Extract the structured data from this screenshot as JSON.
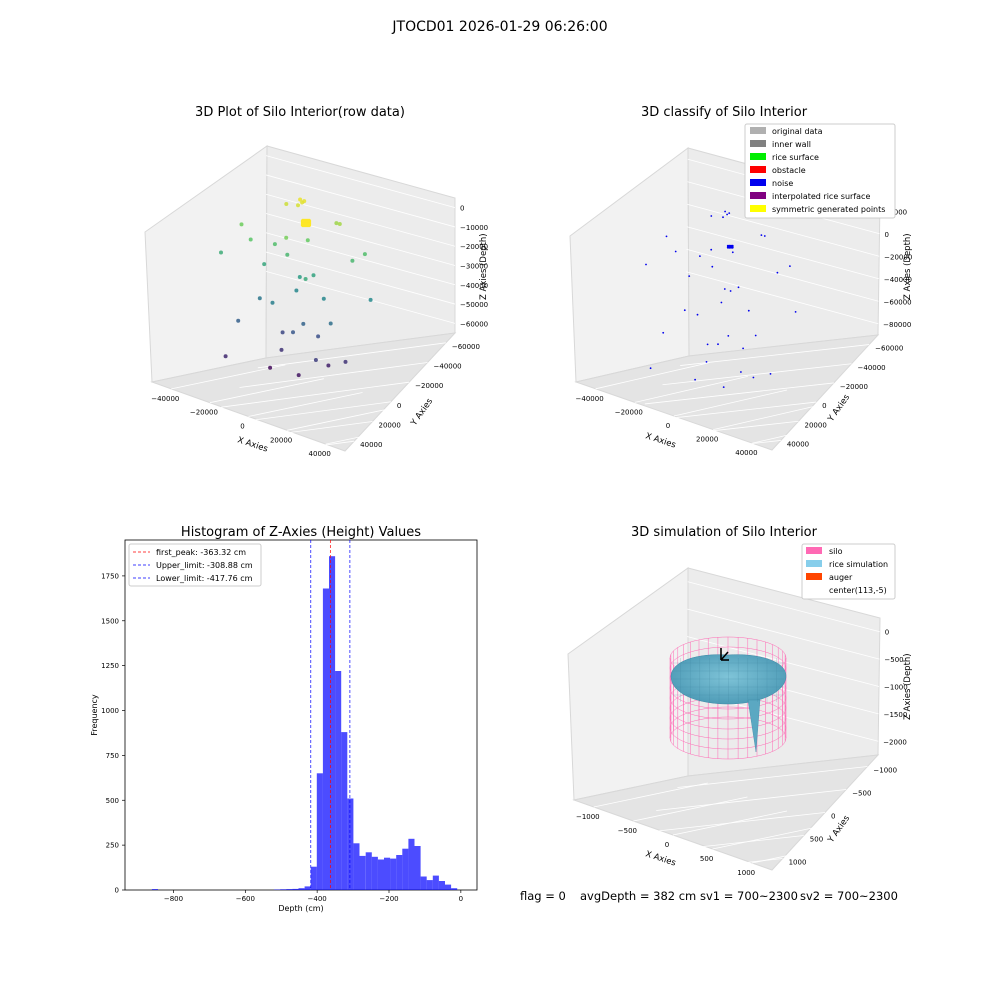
{
  "suptitle": "JTOCD01 2026-01-29 06:26:00",
  "footer": {
    "flag": "flag = 0",
    "avg_depth": "avgDepth = 382 cm",
    "sv1": "sv1 = 700~2300",
    "sv2": "sv2 = 700~2300"
  },
  "chart_data": [
    {
      "type": "scatter",
      "id": "raw",
      "title": "3D Plot of Silo Interior(row data)",
      "xlabel": "X Axies",
      "ylabel": "Y Axies",
      "zlabel": "Z Axies (Depth)",
      "xticks": [
        "−40000",
        "−20000",
        "0",
        "20000",
        "40000"
      ],
      "yticks": [
        "40000",
        "20000",
        "0",
        "−20000",
        "−40000",
        "−60000"
      ],
      "zticks": [
        "0",
        "−10000",
        "−20000",
        "−30000",
        "−40000",
        "−50000",
        "−60000"
      ],
      "colormap": "viridis",
      "points": [
        {
          "x": 8000,
          "y": 0,
          "z": -2000
        },
        {
          "x": 9000,
          "y": 1000,
          "z": -3000
        },
        {
          "x": 7000,
          "y": -1000,
          "z": -4000
        },
        {
          "x": 10000,
          "y": 2000,
          "z": -2500
        },
        {
          "x": -2000,
          "y": 5000,
          "z": -5000
        },
        {
          "x": 25000,
          "y": 20000,
          "z": -10000
        },
        {
          "x": -20000,
          "y": -10000,
          "z": -18000
        },
        {
          "x": 30000,
          "y": 10000,
          "z": -9000
        },
        {
          "x": -30000,
          "y": 5000,
          "z": -15000
        },
        {
          "x": 5000,
          "y": -20000,
          "z": -14000
        },
        {
          "x": 12000,
          "y": 3000,
          "z": -16000
        },
        {
          "x": -10000,
          "y": 8000,
          "z": -20000
        },
        {
          "x": 40000,
          "y": 30000,
          "z": -20000
        },
        {
          "x": 35000,
          "y": 20000,
          "z": -22000
        },
        {
          "x": 0,
          "y": 0,
          "z": -22000
        },
        {
          "x": -40000,
          "y": -5000,
          "z": -25000
        },
        {
          "x": 20000,
          "y": -30000,
          "z": -26000
        },
        {
          "x": 15000,
          "y": 5000,
          "z": -28000
        },
        {
          "x": -15000,
          "y": 2000,
          "z": -27000
        },
        {
          "x": 5000,
          "y": 10000,
          "z": -30000
        },
        {
          "x": 45000,
          "y": 25000,
          "z": -35000
        },
        {
          "x": 20000,
          "y": 10000,
          "z": -36000
        },
        {
          "x": -5000,
          "y": -15000,
          "z": -38000
        },
        {
          "x": 0,
          "y": 20000,
          "z": -36000
        },
        {
          "x": -20000,
          "y": 10000,
          "z": -40000
        },
        {
          "x": 30000,
          "y": -10000,
          "z": -42000
        },
        {
          "x": 10000,
          "y": 0,
          "z": -45000
        },
        {
          "x": -25000,
          "y": -20000,
          "z": -46000
        },
        {
          "x": 5000,
          "y": -5000,
          "z": -48000
        },
        {
          "x": 15000,
          "y": 15000,
          "z": -50000
        },
        {
          "x": -10000,
          "y": 25000,
          "z": -52000
        },
        {
          "x": 25000,
          "y": -25000,
          "z": -54000
        },
        {
          "x": -5000,
          "y": 5000,
          "z": -56000
        },
        {
          "x": 35000,
          "y": 5000,
          "z": -56000
        },
        {
          "x": -30000,
          "y": -30000,
          "z": -58000
        },
        {
          "x": 20000,
          "y": 20000,
          "z": -60000
        },
        {
          "x": 10000,
          "y": -10000,
          "z": -62000
        },
        {
          "x": -15000,
          "y": 15000,
          "z": -64000
        }
      ]
    },
    {
      "type": "scatter",
      "id": "classify",
      "title": "3D classify of Silo Interior",
      "xlabel": "X Axies",
      "ylabel": "Y Axies",
      "zlabel": "Z Axies (Depth)",
      "xticks": [
        "−40000",
        "−20000",
        "0",
        "20000",
        "40000"
      ],
      "yticks": [
        "40000",
        "20000",
        "0",
        "−20000",
        "−40000",
        "−60000"
      ],
      "zticks": [
        "20000",
        "0",
        "−20000",
        "−40000",
        "−60000",
        "−80000"
      ],
      "legend": {
        "position": "upper-right",
        "entries": [
          {
            "label": "original data",
            "color": "#b0b0b0"
          },
          {
            "label": "inner wall",
            "color": "#808080"
          },
          {
            "label": "rice surface",
            "color": "#00ee00"
          },
          {
            "label": "obstacle",
            "color": "#ff0000"
          },
          {
            "label": "noise",
            "color": "#0000ee"
          },
          {
            "label": "interpolated rice surface",
            "color": "#800080"
          },
          {
            "label": "symmetric generated points",
            "color": "#ffff00"
          }
        ]
      },
      "points_color": "#0000ee"
    },
    {
      "type": "histogram",
      "id": "hist",
      "title": "Histogram of Z-Axies (Height) Values",
      "xlabel": "Depth (cm)",
      "ylabel": "Frequency",
      "xlim": [
        -935,
        45
      ],
      "ylim": [
        0,
        1950
      ],
      "xticks": [
        -800,
        -600,
        -400,
        -200,
        0
      ],
      "xtick_labels": [
        "−800",
        "−600",
        "−400",
        "−200",
        "0"
      ],
      "yticks": [
        0,
        250,
        500,
        750,
        1000,
        1250,
        1500,
        1750
      ],
      "bar_color": "#0000ff",
      "bin_width": 17,
      "bins": [
        {
          "x0": -860,
          "count": 5
        },
        {
          "x0": -520,
          "count": 3
        },
        {
          "x0": -503,
          "count": 4
        },
        {
          "x0": -486,
          "count": 5
        },
        {
          "x0": -469,
          "count": 6
        },
        {
          "x0": -452,
          "count": 10
        },
        {
          "x0": -435,
          "count": 20
        },
        {
          "x0": -418,
          "count": 130
        },
        {
          "x0": -401,
          "count": 650
        },
        {
          "x0": -384,
          "count": 1680
        },
        {
          "x0": -367,
          "count": 1860
        },
        {
          "x0": -350,
          "count": 1220
        },
        {
          "x0": -333,
          "count": 880
        },
        {
          "x0": -316,
          "count": 510
        },
        {
          "x0": -299,
          "count": 260
        },
        {
          "x0": -282,
          "count": 190
        },
        {
          "x0": -265,
          "count": 210
        },
        {
          "x0": -248,
          "count": 185
        },
        {
          "x0": -231,
          "count": 170
        },
        {
          "x0": -214,
          "count": 180
        },
        {
          "x0": -197,
          "count": 175
        },
        {
          "x0": -180,
          "count": 195
        },
        {
          "x0": -163,
          "count": 230
        },
        {
          "x0": -146,
          "count": 285
        },
        {
          "x0": -129,
          "count": 245
        },
        {
          "x0": -112,
          "count": 75
        },
        {
          "x0": -95,
          "count": 55
        },
        {
          "x0": -78,
          "count": 80
        },
        {
          "x0": -61,
          "count": 50
        },
        {
          "x0": -44,
          "count": 30
        },
        {
          "x0": -27,
          "count": 10
        }
      ],
      "lines": [
        {
          "label": "first_peak: -363.32 cm",
          "value": -363.32,
          "color": "#ff0000"
        },
        {
          "label": "Upper_limit: -308.88 cm",
          "value": -308.88,
          "color": "#0000ff"
        },
        {
          "label": "Lower_limit: -417.76 cm",
          "value": -417.76,
          "color": "#0000ff"
        }
      ],
      "legend": {
        "position": "upper-left"
      }
    },
    {
      "type": "surface",
      "id": "sim",
      "title": "3D simulation of Silo Interior",
      "xlabel": "X Axies",
      "ylabel": "Y Axies",
      "zlabel": "Z Axies (Depth)",
      "xticks": [
        "−1000",
        "−500",
        "0",
        "500",
        "1000"
      ],
      "yticks": [
        "1000",
        "500",
        "0",
        "−500",
        "−1000"
      ],
      "zticks": [
        "0",
        "−500",
        "−1000",
        "−1500",
        "−2000"
      ],
      "legend": {
        "position": "upper-right",
        "entries": [
          {
            "label": "silo",
            "color": "#ff69b4"
          },
          {
            "label": "rice simulation",
            "color": "#87ceeb"
          },
          {
            "label": "auger",
            "color": "#ff4500"
          },
          {
            "label": "center(113,-5)",
            "color": "#ffffff"
          }
        ]
      }
    }
  ]
}
